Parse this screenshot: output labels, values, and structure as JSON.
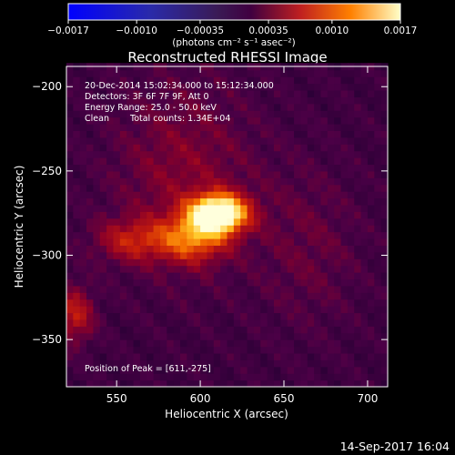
{
  "chart_data": {
    "type": "heatmap",
    "title": "Reconstructed RHESSI Image",
    "xlabel": "Heliocentric X (arcsec)",
    "ylabel": "Heliocentric Y (arcsec)",
    "xlim": [
      520,
      712
    ],
    "ylim": [
      -378,
      -188
    ],
    "xticks": [
      550,
      600,
      650,
      700
    ],
    "yticks": [
      -200,
      -250,
      -300,
      -350
    ],
    "colorbar": {
      "ticks": [
        "-0.0017",
        "-0.0010",
        "-0.00035",
        "0.00035",
        "0.0010",
        "0.0017"
      ],
      "range": [
        -0.0017,
        0.0017
      ],
      "unit_label": "(photons cm⁻² s⁻¹ asec⁻²)"
    },
    "annotations": [
      "20-Dec-2014 15:02:34.000 to 15:12:34.000",
      "Detectors: 3F 6F 7F 9F, Att 0",
      "Energy Range: 25.0 - 50.0 keV",
      "Clean",
      "Total counts: 1.34E+04"
    ],
    "peak_text": "Position of Peak = [611,-275]",
    "peak": {
      "x": 611,
      "y": -275,
      "value": 0.0017
    },
    "sources": [
      {
        "x": 611,
        "y": -275,
        "sx": 12,
        "sy": 8,
        "amp": 1.0
      },
      {
        "x": 596,
        "y": -290,
        "sx": 14,
        "sy": 10,
        "amp": 0.45
      },
      {
        "x": 560,
        "y": -291,
        "sx": 16,
        "sy": 9,
        "amp": 0.32
      },
      {
        "x": 590,
        "y": -252,
        "sx": 30,
        "sy": 40,
        "amp": 0.2
      },
      {
        "x": 525,
        "y": -335,
        "sx": 8,
        "sy": 12,
        "amp": 0.35
      },
      {
        "x": 665,
        "y": -295,
        "sx": 22,
        "sy": 35,
        "amp": 0.12
      }
    ],
    "footer_date": "14-Sep-2017 16:04"
  }
}
